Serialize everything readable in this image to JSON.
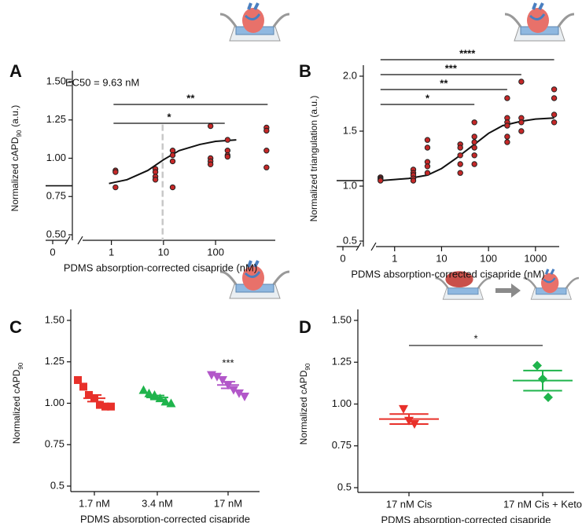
{
  "chart_data": [
    {
      "type": "scatter",
      "panel": "A",
      "xscale": "log",
      "x_label": "PDMS absorption-corrected cisapride (nM)",
      "y_label": "Normalized cAPD",
      "y_label_sub": "90",
      "y_label_unit": "(a.u.)",
      "annotation": "EC50 = 9.63 nM",
      "ec50": 9.63,
      "xlim": [
        0.28,
        1400
      ],
      "xticks": [
        1,
        10,
        100
      ],
      "zero_tick": 0,
      "ylim": [
        0.5,
        1.5
      ],
      "yticks": [
        {
          "value": 0.5,
          "label": "0.50"
        },
        {
          "value": 0.75,
          "label": "0.75"
        },
        {
          "value": 1,
          "label": "1.00"
        },
        {
          "value": 1.25,
          "label": "1.25"
        },
        {
          "value": 1.5,
          "label": "1.50"
        }
      ],
      "baseline": 0.82,
      "series": [
        {
          "color": "#c62828",
          "x": [
            1.2,
            1.2,
            1.2,
            7,
            7,
            7,
            7,
            15,
            15,
            15,
            15,
            80,
            80,
            80,
            80,
            170,
            170,
            170,
            170,
            950,
            950,
            950,
            950
          ],
          "values": [
            0.92,
            0.91,
            0.81,
            0.93,
            0.91,
            0.88,
            0.86,
            1.05,
            1.02,
            0.98,
            0.81,
            1.21,
            1.0,
            0.98,
            0.96,
            1.12,
            1.05,
            1.02,
            1.01,
            1.2,
            1.18,
            1.05,
            0.94
          ]
        }
      ],
      "fit": {
        "x": [
          0.9,
          2,
          5,
          10,
          20,
          50,
          100,
          250
        ],
        "values": [
          0.835,
          0.86,
          0.92,
          0.99,
          1.05,
          1.09,
          1.11,
          1.12
        ]
      },
      "brackets": [
        {
          "label": "*",
          "x": [
            1.1,
            150
          ]
        },
        {
          "label": "**",
          "x": [
            1.1,
            1000
          ]
        }
      ]
    },
    {
      "type": "scatter",
      "panel": "B",
      "xscale": "log",
      "x_label": "PDMS absorption-corrected cisapride (nM)",
      "y_label": "Normalized triangulation (a.u.)",
      "xlim": [
        0.4,
        3200
      ],
      "xticks": [
        1,
        10,
        100,
        1000
      ],
      "zero_tick": 0,
      "ylim": [
        0.5,
        2
      ],
      "yticks": [
        0.5,
        {
          "value": 1,
          "label": "1.0"
        },
        1.5,
        {
          "value": 2,
          "label": "2.0"
        }
      ],
      "baseline": 1.05,
      "series": [
        {
          "color": "#c62828",
          "x": [
            0.5,
            0.5,
            0.5,
            0.5,
            2.5,
            2.5,
            2.5,
            2.5,
            2.5,
            5,
            5,
            5,
            5,
            5,
            25,
            25,
            25,
            25,
            25,
            50,
            50,
            50,
            50,
            50,
            50,
            250,
            250,
            250,
            250,
            250,
            250,
            500,
            500,
            500,
            500,
            2500,
            2500,
            2500,
            2500
          ],
          "values": [
            1.08,
            1.07,
            1.06,
            1.05,
            1.15,
            1.12,
            1.1,
            1.07,
            1.05,
            1.42,
            1.35,
            1.22,
            1.18,
            1.12,
            1.38,
            1.35,
            1.28,
            1.2,
            1.12,
            1.58,
            1.45,
            1.4,
            1.35,
            1.28,
            1.2,
            1.8,
            1.62,
            1.58,
            1.55,
            1.45,
            1.4,
            1.95,
            1.62,
            1.58,
            1.5,
            1.88,
            1.8,
            1.65,
            1.58
          ]
        }
      ],
      "fit": {
        "x": [
          0.5,
          1,
          2,
          5,
          10,
          20,
          50,
          100,
          200,
          500,
          1000,
          2500
        ],
        "values": [
          1.05,
          1.06,
          1.07,
          1.1,
          1.16,
          1.25,
          1.38,
          1.48,
          1.55,
          1.59,
          1.61,
          1.62
        ]
      },
      "brackets": [
        {
          "label": "*",
          "x": [
            0.5,
            50
          ]
        },
        {
          "label": "**",
          "x": [
            0.5,
            250
          ]
        },
        {
          "label": "***",
          "x": [
            0.5,
            500
          ]
        },
        {
          "label": "****",
          "x": [
            0.5,
            2500
          ]
        }
      ]
    },
    {
      "type": "dot",
      "panel": "C",
      "x_label": "PDMS absorption-corrected cisapride",
      "y_label": "Normalized cAPD",
      "y_label_sub": "90",
      "ylim": [
        0.5,
        1.5
      ],
      "yticks": [
        0.5,
        0.75,
        {
          "value": 1,
          "label": "1.00"
        },
        1.25,
        {
          "value": 1.5,
          "label": "1.50"
        }
      ],
      "categories": [
        "1.7 nM",
        "3.4 nM",
        "17 nM"
      ],
      "colors": [
        "#e8302a",
        "#1fb44c",
        "#b257c9"
      ],
      "markers": [
        "square",
        "triangle",
        "down-triangle"
      ],
      "values": [
        [
          1.14,
          1.1,
          1.05,
          1.03,
          0.99,
          0.98,
          0.98
        ],
        [
          1.08,
          1.06,
          1.05,
          1.03,
          1.01,
          1.0
        ],
        [
          1.17,
          1.16,
          1.14,
          1.11,
          1.08,
          1.06,
          1.04
        ]
      ],
      "means": [
        1.03,
        1.035,
        1.11
      ],
      "sems": [
        0.02,
        0.012,
        0.02
      ],
      "annotations": [
        {
          "label": "***",
          "category": "17 nM",
          "y": 1.24
        }
      ]
    },
    {
      "type": "dot",
      "panel": "D",
      "x_label": "PDMS absorption-corrected cisapride",
      "y_label": "Normalized cAPD",
      "y_label_sub": "90",
      "ylim": [
        0.5,
        1.5
      ],
      "yticks": [
        0.5,
        0.75,
        {
          "value": 1,
          "label": "1.00"
        },
        1.25,
        {
          "value": 1.5,
          "label": "1.50"
        }
      ],
      "categories": [
        "17 nM Cis",
        "17 nM Cis + Keto"
      ],
      "colors": [
        "#e8302a",
        "#1fb44c"
      ],
      "markers": [
        "down-triangle",
        "diamond"
      ],
      "values": [
        [
          0.97,
          0.9,
          0.88
        ],
        [
          1.23,
          1.15,
          1.04
        ]
      ],
      "means": [
        0.91,
        1.14
      ],
      "sems": [
        0.03,
        0.06
      ],
      "brackets": [
        {
          "label": "*",
          "x": [
            "17 nM Cis",
            "17 nM Cis + Keto"
          ],
          "y": 1.35
        }
      ]
    }
  ]
}
